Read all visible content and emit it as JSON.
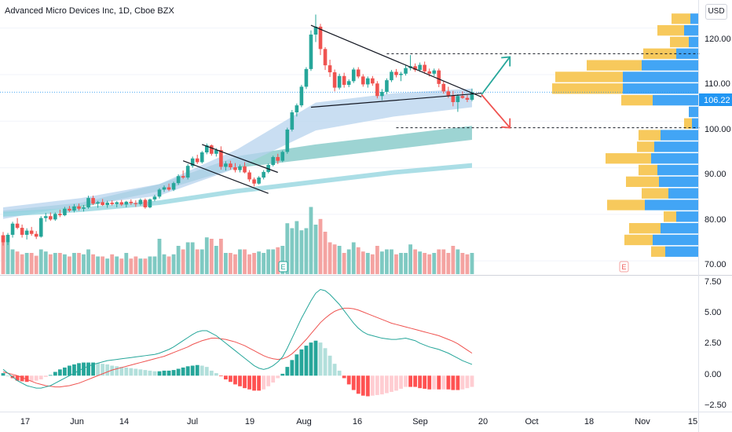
{
  "header": {
    "symbol_title": "Advanced Micro Devices Inc, 1D, Cboe BZX",
    "currency_label": "USD"
  },
  "price_axis": {
    "ticks": [
      "120.00",
      "110.00",
      "100.00",
      "90.00",
      "80.00",
      "70.00"
    ],
    "last_price_label": "106.22"
  },
  "macd_axis": {
    "ticks": [
      "7.50",
      "5.00",
      "2.50",
      "0.00",
      "−2.50"
    ]
  },
  "time_axis": {
    "labels": [
      "17",
      "Jun",
      "14",
      "Jul",
      "19",
      "Aug",
      "16",
      "Sep",
      "20",
      "Oct",
      "18",
      "Nov",
      "15"
    ]
  },
  "earnings_markers": {
    "past_label": "E",
    "future_label": "E"
  },
  "colors": {
    "up": "#26a69a",
    "down": "#ef5350",
    "volume_up": "#7fc9c2",
    "volume_down": "#f4a3a1",
    "vp_buy": "#42a5f5",
    "vp_sell": "#f7c95c",
    "macd_line": "#26a69a",
    "signal_line": "#ef5350",
    "arrow_up": "#26a69a",
    "arrow_down": "#ef5350",
    "last_price": "#2196f3",
    "ema_band_light": "#b7d3ee",
    "ema_band_teal": "#7cc6c4",
    "ema_band_cyan": "#8fd3dd"
  },
  "chart_data": {
    "type": "candlestick",
    "price_range": [
      68,
      124
    ],
    "ohlc": [
      [
        75.5,
        76.2,
        73.3,
        74.0
      ],
      [
        74.0,
        76.0,
        73.4,
        75.6
      ],
      [
        75.6,
        78.4,
        75.0,
        78.0
      ],
      [
        78.0,
        79.2,
        76.8,
        77.1
      ],
      [
        77.1,
        77.8,
        75.0,
        75.6
      ],
      [
        75.6,
        77.0,
        74.6,
        76.5
      ],
      [
        76.5,
        77.3,
        75.4,
        75.8
      ],
      [
        75.8,
        76.4,
        74.7,
        75.2
      ],
      [
        75.2,
        79.6,
        75.0,
        79.2
      ],
      [
        79.2,
        80.3,
        78.4,
        79.6
      ],
      [
        79.6,
        80.4,
        78.6,
        78.9
      ],
      [
        78.9,
        80.4,
        78.6,
        80.1
      ],
      [
        80.1,
        81.0,
        79.4,
        79.8
      ],
      [
        79.8,
        81.6,
        79.6,
        81.2
      ],
      [
        81.2,
        81.8,
        80.5,
        80.8
      ],
      [
        80.8,
        82.2,
        80.4,
        81.7
      ],
      [
        81.7,
        82.3,
        80.8,
        81.2
      ],
      [
        81.2,
        82.0,
        80.6,
        81.5
      ],
      [
        81.5,
        84.0,
        81.2,
        83.5
      ],
      [
        83.5,
        84.0,
        82.0,
        82.3
      ],
      [
        82.3,
        82.9,
        81.4,
        82.6
      ],
      [
        82.6,
        83.3,
        81.8,
        82.0
      ],
      [
        82.0,
        82.9,
        81.4,
        82.5
      ],
      [
        82.5,
        83.0,
        81.9,
        82.2
      ],
      [
        82.2,
        82.8,
        81.5,
        82.6
      ],
      [
        82.6,
        83.1,
        81.8,
        82.1
      ],
      [
        82.1,
        82.9,
        81.5,
        82.7
      ],
      [
        82.7,
        83.2,
        82.0,
        82.4
      ],
      [
        82.4,
        83.0,
        81.6,
        82.2
      ],
      [
        82.2,
        83.4,
        81.9,
        83.1
      ],
      [
        83.1,
        83.4,
        81.2,
        81.5
      ],
      [
        81.5,
        83.4,
        81.3,
        83.2
      ],
      [
        83.2,
        84.2,
        82.8,
        83.8
      ],
      [
        83.8,
        85.6,
        83.4,
        85.3
      ],
      [
        85.3,
        86.2,
        84.8,
        85.8
      ],
      [
        85.8,
        86.6,
        85.0,
        85.3
      ],
      [
        85.3,
        87.0,
        85.0,
        86.7
      ],
      [
        86.7,
        88.6,
        86.3,
        88.2
      ],
      [
        88.2,
        89.4,
        87.6,
        87.9
      ],
      [
        87.9,
        90.8,
        87.5,
        90.4
      ],
      [
        90.4,
        92.4,
        90.0,
        92.0
      ],
      [
        92.0,
        92.8,
        90.8,
        91.2
      ],
      [
        91.2,
        93.6,
        90.9,
        93.3
      ],
      [
        93.3,
        95.2,
        92.9,
        94.8
      ],
      [
        94.8,
        95.0,
        92.6,
        93.0
      ],
      [
        93.0,
        94.2,
        92.4,
        93.8
      ],
      [
        93.8,
        94.6,
        89.6,
        90.2
      ],
      [
        90.2,
        91.4,
        89.4,
        90.9
      ],
      [
        90.9,
        91.5,
        89.6,
        90.1
      ],
      [
        90.1,
        91.0,
        89.0,
        89.5
      ],
      [
        89.5,
        90.7,
        89.0,
        90.3
      ],
      [
        90.3,
        91.2,
        88.8,
        89.0
      ],
      [
        89.0,
        89.5,
        87.0,
        87.5
      ],
      [
        87.5,
        87.9,
        86.0,
        86.6
      ],
      [
        86.6,
        88.2,
        86.4,
        87.9
      ],
      [
        87.9,
        89.5,
        87.5,
        89.1
      ],
      [
        89.1,
        90.9,
        88.8,
        90.6
      ],
      [
        90.6,
        92.6,
        90.3,
        92.3
      ],
      [
        92.3,
        93.0,
        90.8,
        91.5
      ],
      [
        91.5,
        93.7,
        91.2,
        93.4
      ],
      [
        93.4,
        98.6,
        93.0,
        98.2
      ],
      [
        98.2,
        102.4,
        97.8,
        101.9
      ],
      [
        101.9,
        103.8,
        101.0,
        103.4
      ],
      [
        103.4,
        107.8,
        103.0,
        107.4
      ],
      [
        107.4,
        111.6,
        106.9,
        111.2
      ],
      [
        111.2,
        119.5,
        110.8,
        118.6
      ],
      [
        118.6,
        122.9,
        117.0,
        120.3
      ],
      [
        120.3,
        120.9,
        114.2,
        115.5
      ],
      [
        115.5,
        115.9,
        111.0,
        112.0
      ],
      [
        112.0,
        113.2,
        109.5,
        110.5
      ],
      [
        110.5,
        111.1,
        106.4,
        107.2
      ],
      [
        107.2,
        110.2,
        106.8,
        109.7
      ],
      [
        109.7,
        110.4,
        107.2,
        107.8
      ],
      [
        107.8,
        109.0,
        107.3,
        108.6
      ],
      [
        108.6,
        111.5,
        108.2,
        111.1
      ],
      [
        111.1,
        111.6,
        109.2,
        109.6
      ],
      [
        109.6,
        110.1,
        107.4,
        107.9
      ],
      [
        107.9,
        109.6,
        107.2,
        109.2
      ],
      [
        109.2,
        109.7,
        107.6,
        108.1
      ],
      [
        108.1,
        108.6,
        104.9,
        105.4
      ],
      [
        105.4,
        106.9,
        104.5,
        106.3
      ],
      [
        106.3,
        109.2,
        105.8,
        108.8
      ],
      [
        108.8,
        111.0,
        108.4,
        110.6
      ],
      [
        110.6,
        111.2,
        109.4,
        109.9
      ],
      [
        109.9,
        110.6,
        108.6,
        110.2
      ],
      [
        110.2,
        112.0,
        109.8,
        111.4
      ],
      [
        111.4,
        114.2,
        110.9,
        111.8
      ],
      [
        111.8,
        112.4,
        110.6,
        111.0
      ],
      [
        111.0,
        112.6,
        110.6,
        112.1
      ],
      [
        112.1,
        112.8,
        110.2,
        110.7
      ],
      [
        110.7,
        111.3,
        109.6,
        110.2
      ],
      [
        110.2,
        111.3,
        109.7,
        110.9
      ],
      [
        110.9,
        111.3,
        107.3,
        108.0
      ],
      [
        108.0,
        108.6,
        105.9,
        106.4
      ],
      [
        106.4,
        107.4,
        105.0,
        105.5
      ],
      [
        105.5,
        106.5,
        103.2,
        104.1
      ],
      [
        104.1,
        105.8,
        102.0,
        105.4
      ],
      [
        105.4,
        106.4,
        104.8,
        105.0
      ],
      [
        105.0,
        105.6,
        104.1,
        104.6
      ],
      [
        104.6,
        107.0,
        104.3,
        106.22
      ]
    ],
    "volume_relative": [
      0.55,
      0.45,
      0.35,
      0.32,
      0.28,
      0.3,
      0.3,
      0.26,
      0.35,
      0.32,
      0.28,
      0.3,
      0.3,
      0.28,
      0.25,
      0.3,
      0.3,
      0.28,
      0.35,
      0.28,
      0.25,
      0.25,
      0.22,
      0.28,
      0.25,
      0.22,
      0.3,
      0.22,
      0.25,
      0.22,
      0.22,
      0.25,
      0.25,
      0.5,
      0.28,
      0.25,
      0.28,
      0.4,
      0.35,
      0.45,
      0.45,
      0.35,
      0.35,
      0.52,
      0.5,
      0.4,
      0.5,
      0.3,
      0.3,
      0.28,
      0.35,
      0.35,
      0.28,
      0.3,
      0.32,
      0.3,
      0.35,
      0.35,
      0.38,
      0.4,
      0.72,
      0.65,
      0.75,
      0.62,
      0.65,
      0.95,
      0.7,
      0.78,
      0.6,
      0.45,
      0.42,
      0.4,
      0.3,
      0.35,
      0.45,
      0.38,
      0.32,
      0.3,
      0.28,
      0.4,
      0.32,
      0.35,
      0.35,
      0.28,
      0.3,
      0.3,
      0.42,
      0.35,
      0.32,
      0.3,
      0.28,
      0.3,
      0.35,
      0.35,
      0.3,
      0.4,
      0.35,
      0.3,
      0.28,
      0.3
    ],
    "ema_bands": [
      {
        "color_key": "ema_band_teal",
        "start_index": 0,
        "lower": [
          80.2,
          81.5,
          85.0,
          90.0,
          92.0,
          94.0,
          96.0
        ],
        "upper": [
          80.8,
          82.5,
          86.5,
          92.5,
          95.0,
          97.0,
          99.0
        ]
      },
      {
        "color_key": "ema_band_light",
        "start_index": 0,
        "lower": [
          79.0,
          82.0,
          84.0,
          90.0,
          98.0,
          101.0,
          103.0
        ],
        "upper": [
          81.5,
          83.5,
          86.5,
          94.0,
          104.0,
          106.0,
          107.0
        ]
      },
      {
        "color_key": "ema_band_cyan",
        "start_index": 0,
        "lower": [
          79.5,
          80.5,
          82.0,
          84.5,
          86.5,
          88.5,
          90.0
        ],
        "upper": [
          80.5,
          81.5,
          83.0,
          85.5,
          87.5,
          89.5,
          91.0
        ]
      }
    ],
    "volume_profile": {
      "bins": [
        {
          "price": 122.0,
          "buy": 10,
          "sell": 24
        },
        {
          "price": 119.5,
          "buy": 18,
          "sell": 34
        },
        {
          "price": 117.0,
          "buy": 12,
          "sell": 24
        },
        {
          "price": 114.5,
          "buy": 28,
          "sell": 42
        },
        {
          "price": 112.0,
          "buy": 72,
          "sell": 70
        },
        {
          "price": 109.5,
          "buy": 96,
          "sell": 86
        },
        {
          "price": 107.0,
          "buy": 96,
          "sell": 90
        },
        {
          "price": 104.5,
          "buy": 58,
          "sell": 40
        },
        {
          "price": 102.0,
          "buy": 12,
          "sell": 0
        },
        {
          "price": 99.5,
          "buy": 8,
          "sell": 10
        },
        {
          "price": 97.0,
          "buy": 48,
          "sell": 28
        },
        {
          "price": 94.5,
          "buy": 56,
          "sell": 22
        },
        {
          "price": 92.0,
          "buy": 60,
          "sell": 58
        },
        {
          "price": 89.5,
          "buy": 52,
          "sell": 24
        },
        {
          "price": 87.0,
          "buy": 50,
          "sell": 42
        },
        {
          "price": 84.5,
          "buy": 38,
          "sell": 34
        },
        {
          "price": 82.0,
          "buy": 68,
          "sell": 48
        },
        {
          "price": 79.5,
          "buy": 28,
          "sell": 16
        },
        {
          "price": 77.0,
          "buy": 48,
          "sell": 40
        },
        {
          "price": 74.5,
          "buy": 58,
          "sell": 36
        },
        {
          "price": 72.0,
          "buy": 42,
          "sell": 18
        }
      ]
    },
    "trendlines": [
      {
        "from": [
          65,
          120.6
        ],
        "to": [
          101,
          105.2
        ]
      },
      {
        "from": [
          65,
          103.0
        ],
        "to": [
          101,
          106.0
        ]
      },
      {
        "from": [
          42,
          95.0
        ],
        "to": [
          58,
          89.0
        ]
      },
      {
        "from": [
          38,
          91.5
        ],
        "to": [
          56,
          84.5
        ]
      }
    ],
    "levels": [
      {
        "price": 114.5,
        "from_index": 81,
        "to_index": 147
      },
      {
        "price": 98.6,
        "from_index": 83,
        "to_index": 147
      }
    ],
    "projection_arrows": [
      {
        "direction": "up",
        "from": [
          101,
          105.7
        ],
        "to": [
          107,
          113.8
        ]
      },
      {
        "direction": "down",
        "from": [
          101,
          105.7
        ],
        "to": [
          107,
          98.6
        ]
      }
    ],
    "macd": {
      "range": [
        -2.75,
        7.75
      ],
      "macd_line": [
        0.5,
        0.2,
        -0.1,
        -0.4,
        -0.6,
        -0.8,
        -0.9,
        -1.0,
        -1.0,
        -0.9,
        -0.8,
        -0.6,
        -0.4,
        -0.2,
        0.0,
        0.2,
        0.4,
        0.6,
        0.75,
        0.9,
        1.0,
        1.1,
        1.2,
        1.25,
        1.3,
        1.35,
        1.4,
        1.45,
        1.5,
        1.55,
        1.6,
        1.65,
        1.7,
        1.8,
        1.95,
        2.1,
        2.3,
        2.55,
        2.8,
        3.05,
        3.3,
        3.5,
        3.6,
        3.6,
        3.4,
        3.2,
        2.9,
        2.6,
        2.3,
        2.0,
        1.7,
        1.4,
        1.1,
        0.8,
        0.6,
        0.5,
        0.6,
        0.8,
        1.1,
        1.5,
        2.2,
        3.0,
        3.8,
        4.6,
        5.3,
        6.0,
        6.6,
        6.9,
        6.8,
        6.5,
        6.1,
        5.7,
        5.2,
        4.7,
        4.2,
        3.8,
        3.5,
        3.3,
        3.2,
        3.1,
        3.0,
        2.95,
        2.9,
        2.9,
        2.95,
        3.0,
        2.9,
        2.8,
        2.6,
        2.45,
        2.3,
        2.2,
        2.1,
        1.95,
        1.8,
        1.6,
        1.4,
        1.2,
        1.05,
        0.9
      ],
      "signal_line": [
        0.3,
        0.2,
        0.1,
        0.0,
        -0.15,
        -0.3,
        -0.45,
        -0.6,
        -0.7,
        -0.8,
        -0.85,
        -0.9,
        -0.9,
        -0.85,
        -0.8,
        -0.7,
        -0.6,
        -0.45,
        -0.3,
        -0.15,
        0.0,
        0.15,
        0.3,
        0.45,
        0.55,
        0.65,
        0.75,
        0.85,
        0.95,
        1.05,
        1.15,
        1.25,
        1.35,
        1.45,
        1.55,
        1.7,
        1.85,
        2.0,
        2.15,
        2.3,
        2.5,
        2.65,
        2.8,
        2.9,
        3.0,
        3.0,
        2.95,
        2.9,
        2.8,
        2.7,
        2.55,
        2.4,
        2.2,
        2.0,
        1.8,
        1.6,
        1.45,
        1.35,
        1.3,
        1.35,
        1.5,
        1.75,
        2.1,
        2.5,
        2.9,
        3.35,
        3.8,
        4.25,
        4.6,
        4.9,
        5.15,
        5.3,
        5.4,
        5.4,
        5.35,
        5.25,
        5.1,
        4.95,
        4.8,
        4.65,
        4.5,
        4.35,
        4.2,
        4.1,
        4.0,
        3.9,
        3.8,
        3.7,
        3.6,
        3.5,
        3.4,
        3.3,
        3.2,
        3.05,
        2.9,
        2.75,
        2.55,
        2.3,
        2.05,
        1.8
      ]
    }
  }
}
